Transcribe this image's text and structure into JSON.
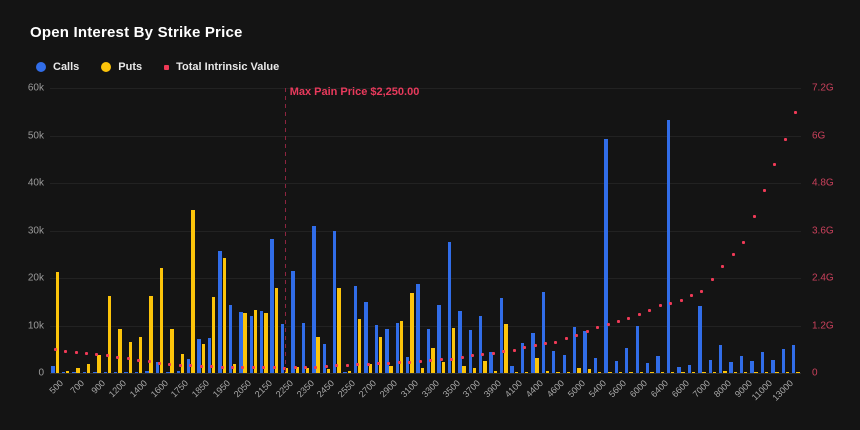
{
  "title": "Open Interest By Strike Price",
  "legend": {
    "calls": "Calls",
    "puts": "Puts",
    "tiv": "Total Intrinsic Value"
  },
  "colors": {
    "calls": "#316de8",
    "puts": "#fcc40a",
    "tiv": "#ef3a57",
    "max_pain_line": "#8e2540",
    "max_pain_text": "#e83a5c",
    "right_axis_text": "#c9405b",
    "left_axis_text": "#9b9b9b",
    "background": "#141414"
  },
  "max_pain": {
    "label": "Max Pain Price $2,250.00",
    "strike": "2250"
  },
  "left_axis": {
    "tick_labels": [
      "0",
      "10k",
      "20k",
      "30k",
      "40k",
      "50k",
      "60k"
    ],
    "max_k": 60
  },
  "right_axis": {
    "tick_labels": [
      "0",
      "1.2G",
      "2.4G",
      "3.6G",
      "4.8G",
      "6G",
      "7.2G"
    ],
    "max_g": 7.2
  },
  "chart_data": {
    "type": "bar",
    "title": "Open Interest By Strike Price",
    "legend_position": "top-left",
    "grid": true,
    "left_ylim_contracts": [
      0,
      60000
    ],
    "right_ylim_intrinsic_value": [
      0,
      7200000000
    ],
    "x_axis_labels_shown": [
      "500",
      "700",
      "900",
      "1200",
      "1400",
      "1600",
      "1750",
      "1850",
      "1950",
      "2050",
      "2150",
      "2250",
      "2350",
      "2450",
      "2550",
      "2700",
      "2900",
      "3100",
      "3300",
      "3500",
      "3700",
      "3900",
      "4100",
      "4400",
      "4600",
      "5000",
      "5400",
      "5600",
      "6000",
      "6400",
      "6600",
      "7000",
      "8000",
      "9000",
      "11000",
      "13000"
    ],
    "x_label_interval": "every 2nd strike labeled",
    "categories": [
      "500",
      "600",
      "700",
      "800",
      "900",
      "1000",
      "1200",
      "1300",
      "1400",
      "1500",
      "1600",
      "1700",
      "1750",
      "1800",
      "1850",
      "1900",
      "1950",
      "2000",
      "2050",
      "2100",
      "2150",
      "2200",
      "2250",
      "2300",
      "2350",
      "2400",
      "2450",
      "2500",
      "2550",
      "2600",
      "2700",
      "2800",
      "2900",
      "3000",
      "3100",
      "3200",
      "3300",
      "3400",
      "3500",
      "3600",
      "3700",
      "3800",
      "3900",
      "4000",
      "4100",
      "4200",
      "4400",
      "4500",
      "4600",
      "4800",
      "5000",
      "5200",
      "5400",
      "5500",
      "5600",
      "5800",
      "6000",
      "6200",
      "6400",
      "6500",
      "6600",
      "6800",
      "7000",
      "7500",
      "8000",
      "8500",
      "9000",
      "10000",
      "11000",
      "12000",
      "13000",
      "14000"
    ],
    "series": [
      {
        "name": "Calls",
        "type": "bar",
        "axis": "left",
        "unit": "thousand contracts",
        "values": [
          1.5,
          0.1,
          0.2,
          0.1,
          0.2,
          0.3,
          0.3,
          0.2,
          0.3,
          0.4,
          2.4,
          0.3,
          0.5,
          3.0,
          7.2,
          7.3,
          25.7,
          14.4,
          12.8,
          12.0,
          13.0,
          28.2,
          10.4,
          21.5,
          10.5,
          30.9,
          6.2,
          30.0,
          0.3,
          18.4,
          14.9,
          10.1,
          9.3,
          10.5,
          3.4,
          18.8,
          9.2,
          14.3,
          27.6,
          13.0,
          9.1,
          12.1,
          4.5,
          15.7,
          1.5,
          6.4,
          8.4,
          17.0,
          4.6,
          3.8,
          9.6,
          8.8,
          3.2,
          49.3,
          2.5,
          5.2,
          9.9,
          2.2,
          3.6,
          53.2,
          1.3,
          1.7,
          14.1,
          2.8,
          6.0,
          2.4,
          3.6,
          2.5,
          4.5,
          2.7,
          5.1,
          5.9
        ]
      },
      {
        "name": "Puts",
        "type": "bar",
        "axis": "left",
        "unit": "thousand contracts",
        "values": [
          21.3,
          0.4,
          1.0,
          1.9,
          3.8,
          16.2,
          9.2,
          6.6,
          7.5,
          16.2,
          22.2,
          9.2,
          3.9,
          34.4,
          6.2,
          15.9,
          24.3,
          1.9,
          12.6,
          13.3,
          12.6,
          17.9,
          1.0,
          1.2,
          1.0,
          7.6,
          0.8,
          18.0,
          0.4,
          11.3,
          2.0,
          7.5,
          1.5,
          11.0,
          16.8,
          1.0,
          5.2,
          2.4,
          9.4,
          1.5,
          1.0,
          2.6,
          0.5,
          10.3,
          0.3,
          0.2,
          3.2,
          0.5,
          0.3,
          0.2,
          1.1,
          0.8,
          0.2,
          0.3,
          0.1,
          0.1,
          0.3,
          0.1,
          0.2,
          0.2,
          0.1,
          0.1,
          0.3,
          0.1,
          0.5,
          0.1,
          0.2,
          0.1,
          0.1,
          0.1,
          0.1,
          0.1
        ]
      },
      {
        "name": "Total Intrinsic Value",
        "type": "scatter",
        "axis": "right",
        "unit": "G",
        "values": [
          0.59,
          0.55,
          0.52,
          0.5,
          0.48,
          0.44,
          0.4,
          0.36,
          0.32,
          0.28,
          0.25,
          0.22,
          0.2,
          0.18,
          0.17,
          0.16,
          0.15,
          0.15,
          0.14,
          0.14,
          0.13,
          0.13,
          0.12,
          0.13,
          0.14,
          0.15,
          0.17,
          0.18,
          0.2,
          0.21,
          0.22,
          0.24,
          0.25,
          0.26,
          0.27,
          0.29,
          0.31,
          0.33,
          0.35,
          0.39,
          0.44,
          0.47,
          0.5,
          0.54,
          0.58,
          0.64,
          0.7,
          0.75,
          0.78,
          0.88,
          0.96,
          1.04,
          1.15,
          1.23,
          1.3,
          1.38,
          1.48,
          1.57,
          1.7,
          1.76,
          1.82,
          1.95,
          2.05,
          2.37,
          2.69,
          3.0,
          3.3,
          3.96,
          4.6,
          5.26,
          5.89,
          6.57
        ]
      }
    ],
    "annotation": {
      "type": "vertical-dashed-line",
      "label": "Max Pain Price $2,250.00",
      "x": "2250"
    }
  }
}
